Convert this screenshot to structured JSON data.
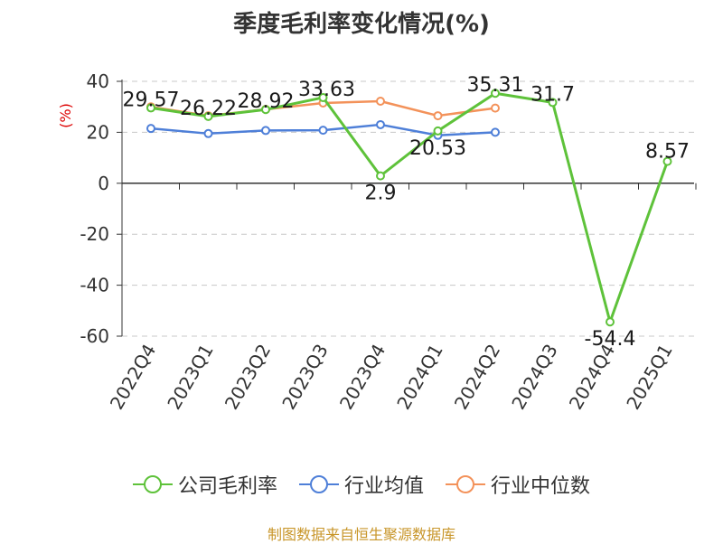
{
  "title": "季度毛利率变化情况(%)",
  "source": "制图数据来自恒生聚源数据库",
  "colors": {
    "company": "#5ec23a",
    "industry_avg": "#4e7fd8",
    "industry_median": "#f3925a",
    "axis_unit": "#dd0000"
  },
  "chart_data": {
    "type": "line",
    "title": "季度毛利率变化情况(%)",
    "ylabel": "(%)",
    "ylim": [
      -60,
      40
    ],
    "yticks": [
      40,
      20,
      0,
      -20,
      -40,
      -60
    ],
    "grid": true,
    "legend_position": "bottom",
    "categories": [
      "2022Q4",
      "2023Q1",
      "2023Q2",
      "2023Q3",
      "2023Q4",
      "2024Q1",
      "2024Q2",
      "2024Q3",
      "2024Q4",
      "2025Q1"
    ],
    "series": [
      {
        "name": "公司毛利率",
        "color": "#5ec23a",
        "values": [
          29.57,
          26.22,
          28.92,
          33.63,
          2.9,
          20.53,
          35.31,
          31.7,
          -54.4,
          8.57
        ],
        "labels": [
          "29.57",
          "26.22",
          "28.92",
          "33.63",
          "2.9",
          "20.53",
          "35.31",
          "31.7",
          "-54.4",
          "8.57"
        ]
      },
      {
        "name": "行业均值",
        "color": "#4e7fd8",
        "values": [
          21.5,
          19.5,
          20.7,
          20.8,
          23.0,
          18.8,
          20.0,
          null,
          null,
          null
        ]
      },
      {
        "name": "行业中位数",
        "color": "#f3925a",
        "values": [
          30.0,
          26.5,
          29.0,
          31.5,
          32.2,
          26.5,
          29.5,
          null,
          null,
          null
        ]
      }
    ]
  }
}
